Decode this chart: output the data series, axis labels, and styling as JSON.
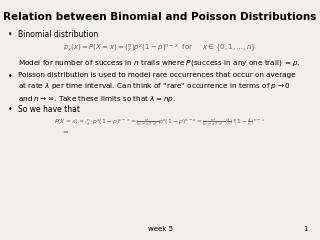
{
  "title": "Relation between Binomial and Poisson Distributions",
  "background_color": "#f2efe9",
  "title_fontsize": 7.5,
  "body_fontsize": 5.5,
  "formula_fontsize": 5.0,
  "footer_text": "week 5",
  "page_number": "1",
  "bullet1_header": "Binomial distribution",
  "bullet1_formula": "$p_x(x) = P(X=x) = \\binom{n}{x} p^x (1-p)^{n-x}$  for     $x \\in \\{0, 1, \\ldots, n\\}$",
  "bullet1_model": "Model for number of success in $n$ trails where $P$(success in any one trail) $= p$.",
  "bullet2_text": "Poisson distribution is used to model rare occurrences that occur on average\nat rate $\\lambda$ per time interval. Can think of \"rare\" occurrence in terms of $p \\to 0$\nand $n \\to \\infty$. Take these limits so that $\\lambda = np$.",
  "bullet3_header": "So we have that",
  "bullet3_formula": "$P(X=x) = \\binom{n}{x}p^x(1-p)^{n-x} = \\frac{n!}{(n-x)!x!}p^x(1-p)^{n-x} = \\frac{n!}{(n-x)!x!}\\left(\\frac{\\lambda}{n}\\right)^x\\!\\left(1-\\frac{\\lambda}{n}\\right)^{n-x}$",
  "bullet3_equals": "$=$"
}
